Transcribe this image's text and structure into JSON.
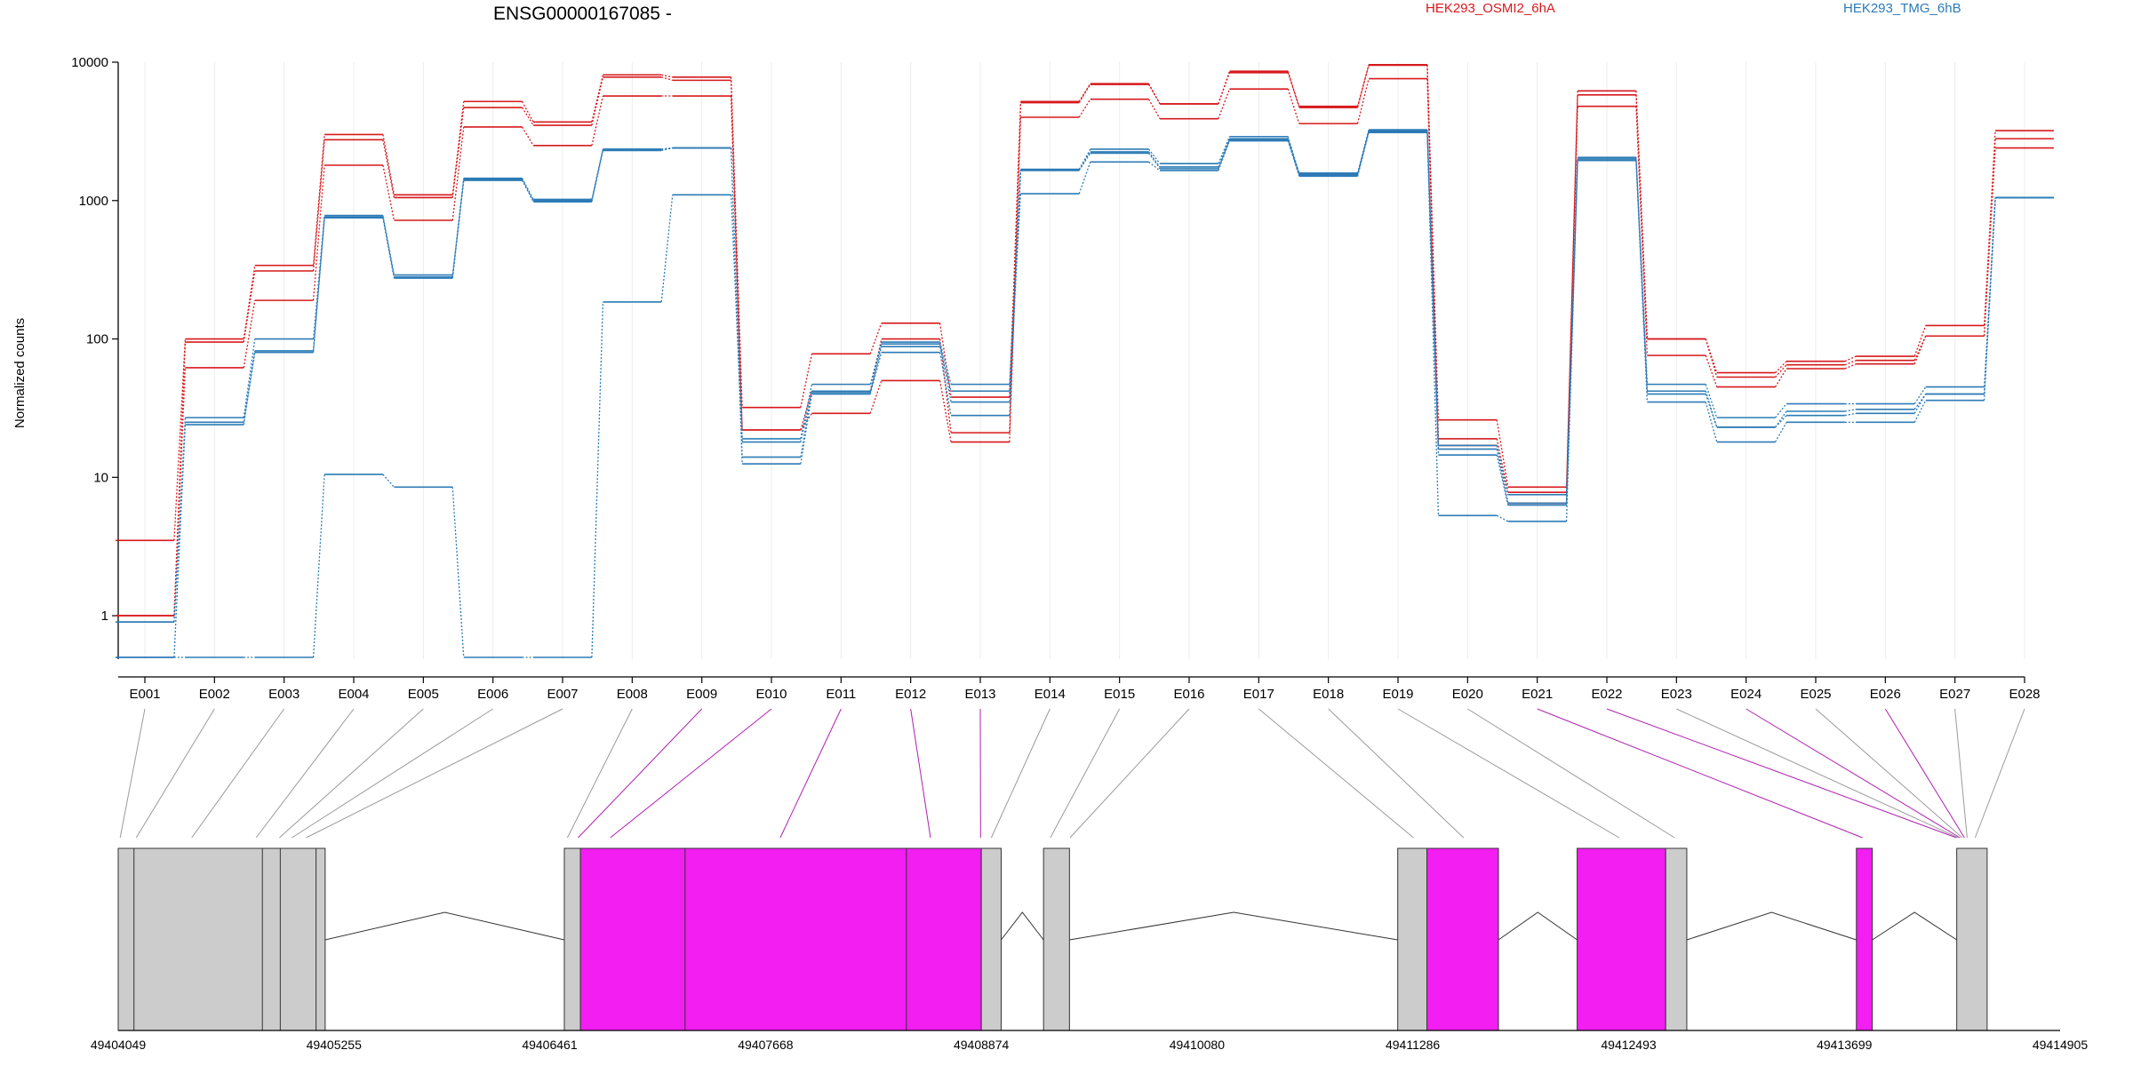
{
  "chart_data": {
    "type": "line",
    "title": "ENSG00000167085 -",
    "ylabel": "Normalized counts",
    "y_scale": "log",
    "ylim": [
      0.5,
      10000
    ],
    "y_ticks": [
      1,
      10,
      100,
      1000,
      10000
    ],
    "y_tick_labels": [
      "1",
      "10",
      "100",
      "1000",
      "10000"
    ],
    "categories": [
      "E001",
      "E002",
      "E003",
      "E004",
      "E005",
      "E006",
      "E007",
      "E008",
      "E009",
      "E010",
      "E011",
      "E012",
      "E013",
      "E014",
      "E015",
      "E016",
      "E017",
      "E018",
      "E019",
      "E020",
      "E021",
      "E022",
      "E023",
      "E024",
      "E025",
      "E026",
      "E027",
      "E028"
    ],
    "grid": true,
    "legend": [
      {
        "name": "HEK293_OSMI2_6hA",
        "color": "#d7191c"
      },
      {
        "name": "HEK293_TMG_6hB",
        "color": "#2c7bb6"
      }
    ],
    "series": [
      {
        "group": "HEK293_OSMI2_6hA",
        "color": "#d7191c",
        "values": [
          3.5,
          100,
          340,
          3000,
          1100,
          5200,
          3700,
          8100,
          7800,
          32,
          78,
          130,
          38,
          5200,
          7000,
          5000,
          8600,
          4700,
          9600,
          26,
          8.5,
          6200,
          100,
          57,
          69,
          75,
          125,
          3200
        ]
      },
      {
        "group": "HEK293_OSMI2_6hA",
        "color": "#d7191c",
        "values": [
          1.0,
          95,
          310,
          2750,
          1050,
          4700,
          3500,
          7800,
          7400,
          22,
          42,
          100,
          21,
          5100,
          6900,
          5000,
          8400,
          4800,
          9500,
          19,
          7.8,
          5800,
          100,
          53,
          65,
          70,
          105,
          2800
        ]
      },
      {
        "group": "HEK293_OSMI2_6hA",
        "color": "#d7191c",
        "values": [
          1.0,
          62,
          190,
          1800,
          720,
          3400,
          2500,
          5700,
          5700,
          22,
          29,
          50,
          18,
          4000,
          5400,
          3900,
          6400,
          3600,
          7600,
          17,
          6.5,
          4800,
          76,
          45,
          61,
          66,
          105,
          2400
        ]
      },
      {
        "group": "HEK293_TMG_6hB",
        "color": "#2c7bb6",
        "values": [
          0.9,
          27,
          100,
          780,
          290,
          1450,
          1020,
          2350,
          2400,
          19,
          47,
          95,
          47,
          1680,
          2350,
          1850,
          2900,
          1580,
          3250,
          17,
          7.5,
          2050,
          47,
          27,
          34,
          34,
          45,
          1050
        ]
      },
      {
        "group": "HEK293_TMG_6hB",
        "color": "#2c7bb6",
        "values": [
          0.9,
          25,
          82,
          760,
          280,
          1420,
          1000,
          2350,
          2400,
          14,
          42,
          92,
          35,
          1680,
          2250,
          1750,
          2800,
          1550,
          3200,
          16,
          6.5,
          2000,
          42,
          23,
          28,
          29,
          40,
          1050
        ]
      },
      {
        "group": "HEK293_TMG_6hB",
        "color": "#2c7bb6",
        "values": [
          0.5,
          24,
          80,
          750,
          275,
          1400,
          980,
          2300,
          2400,
          12.5,
          40,
          80,
          28,
          1650,
          2200,
          1700,
          2750,
          1530,
          3150,
          14.5,
          6.3,
          1950,
          35,
          18,
          25,
          25,
          36,
          1050
        ]
      },
      {
        "group": "HEK293_TMG_6hB",
        "color": "#2c7bb6",
        "values": [
          0.5,
          0.5,
          0.5,
          10.5,
          8.5,
          0.5,
          0.5,
          185,
          1100,
          18,
          41,
          88,
          42,
          1120,
          1900,
          1650,
          2700,
          1500,
          3100,
          5.3,
          4.8,
          1950,
          40,
          23,
          30,
          31,
          40,
          1050
        ]
      }
    ],
    "gene_model": {
      "coordinate_ticks": [
        "49404049",
        "49405255",
        "49406461",
        "49407668",
        "49408874",
        "49410080",
        "49411286",
        "49412493",
        "49413699",
        "49414905"
      ],
      "coordinate_tick_values": [
        49404049,
        49405255,
        49406461,
        49407668,
        49408874,
        49410080,
        49411286,
        49412493,
        49413699,
        49414905
      ],
      "exons": [
        {
          "start": 49404049,
          "end": 49405206,
          "highlight": false
        },
        {
          "start": 49406543,
          "end": 49406633,
          "highlight": false
        },
        {
          "start": 49406633,
          "end": 49408874,
          "highlight": true
        },
        {
          "start": 49408874,
          "end": 49408985,
          "highlight": false
        },
        {
          "start": 49409222,
          "end": 49409367,
          "highlight": false
        },
        {
          "start": 49411202,
          "end": 49411365,
          "highlight": false
        },
        {
          "start": 49411365,
          "end": 49411765,
          "highlight": true
        },
        {
          "start": 49412205,
          "end": 49412700,
          "highlight": true
        },
        {
          "start": 49412700,
          "end": 49412818,
          "highlight": false
        },
        {
          "start": 49413766,
          "end": 49413855,
          "highlight": true
        },
        {
          "start": 49414327,
          "end": 49414497,
          "highlight": false
        }
      ],
      "exon_dividers": [
        49404137,
        49404855,
        49404955,
        49405155,
        49407218,
        49408455
      ],
      "introns": [
        [
          49405206,
          49406543
        ],
        [
          49408985,
          49409222
        ],
        [
          49409367,
          49411202
        ],
        [
          49411765,
          49412205
        ],
        [
          49412818,
          49413766
        ],
        [
          49413855,
          49414327
        ]
      ],
      "bin_positions": [
        49404060,
        49404150,
        49404460,
        49404820,
        49404950,
        49405020,
        49405100,
        49406560,
        49406620,
        49406800,
        49407750,
        49408590,
        49408870,
        49408930,
        49409260,
        49409370,
        49411290,
        49411570,
        49412440,
        49412750,
        49413800,
        49414325,
        49414335,
        49414345,
        49414358,
        49414370,
        49414385,
        49414430
      ],
      "bin_highlight": [
        false,
        false,
        false,
        false,
        false,
        false,
        false,
        false,
        true,
        true,
        true,
        true,
        true,
        false,
        false,
        false,
        false,
        false,
        false,
        false,
        true,
        true,
        false,
        true,
        false,
        true,
        false,
        false
      ],
      "highlight_color": "#f21ef2",
      "exon_color": "#cccccc"
    }
  }
}
